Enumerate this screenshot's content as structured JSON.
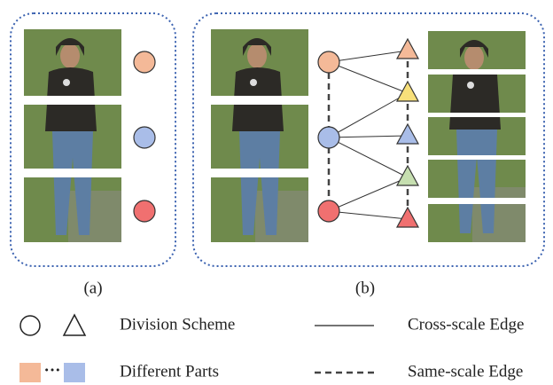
{
  "panels": [
    {
      "label": "(a)"
    },
    {
      "label": "(b)"
    }
  ],
  "legend": [
    {
      "label": "Division Scheme"
    },
    {
      "label": "Cross-scale Edge"
    },
    {
      "label": "Different Parts"
    },
    {
      "label": "Same-scale Edge"
    }
  ]
}
